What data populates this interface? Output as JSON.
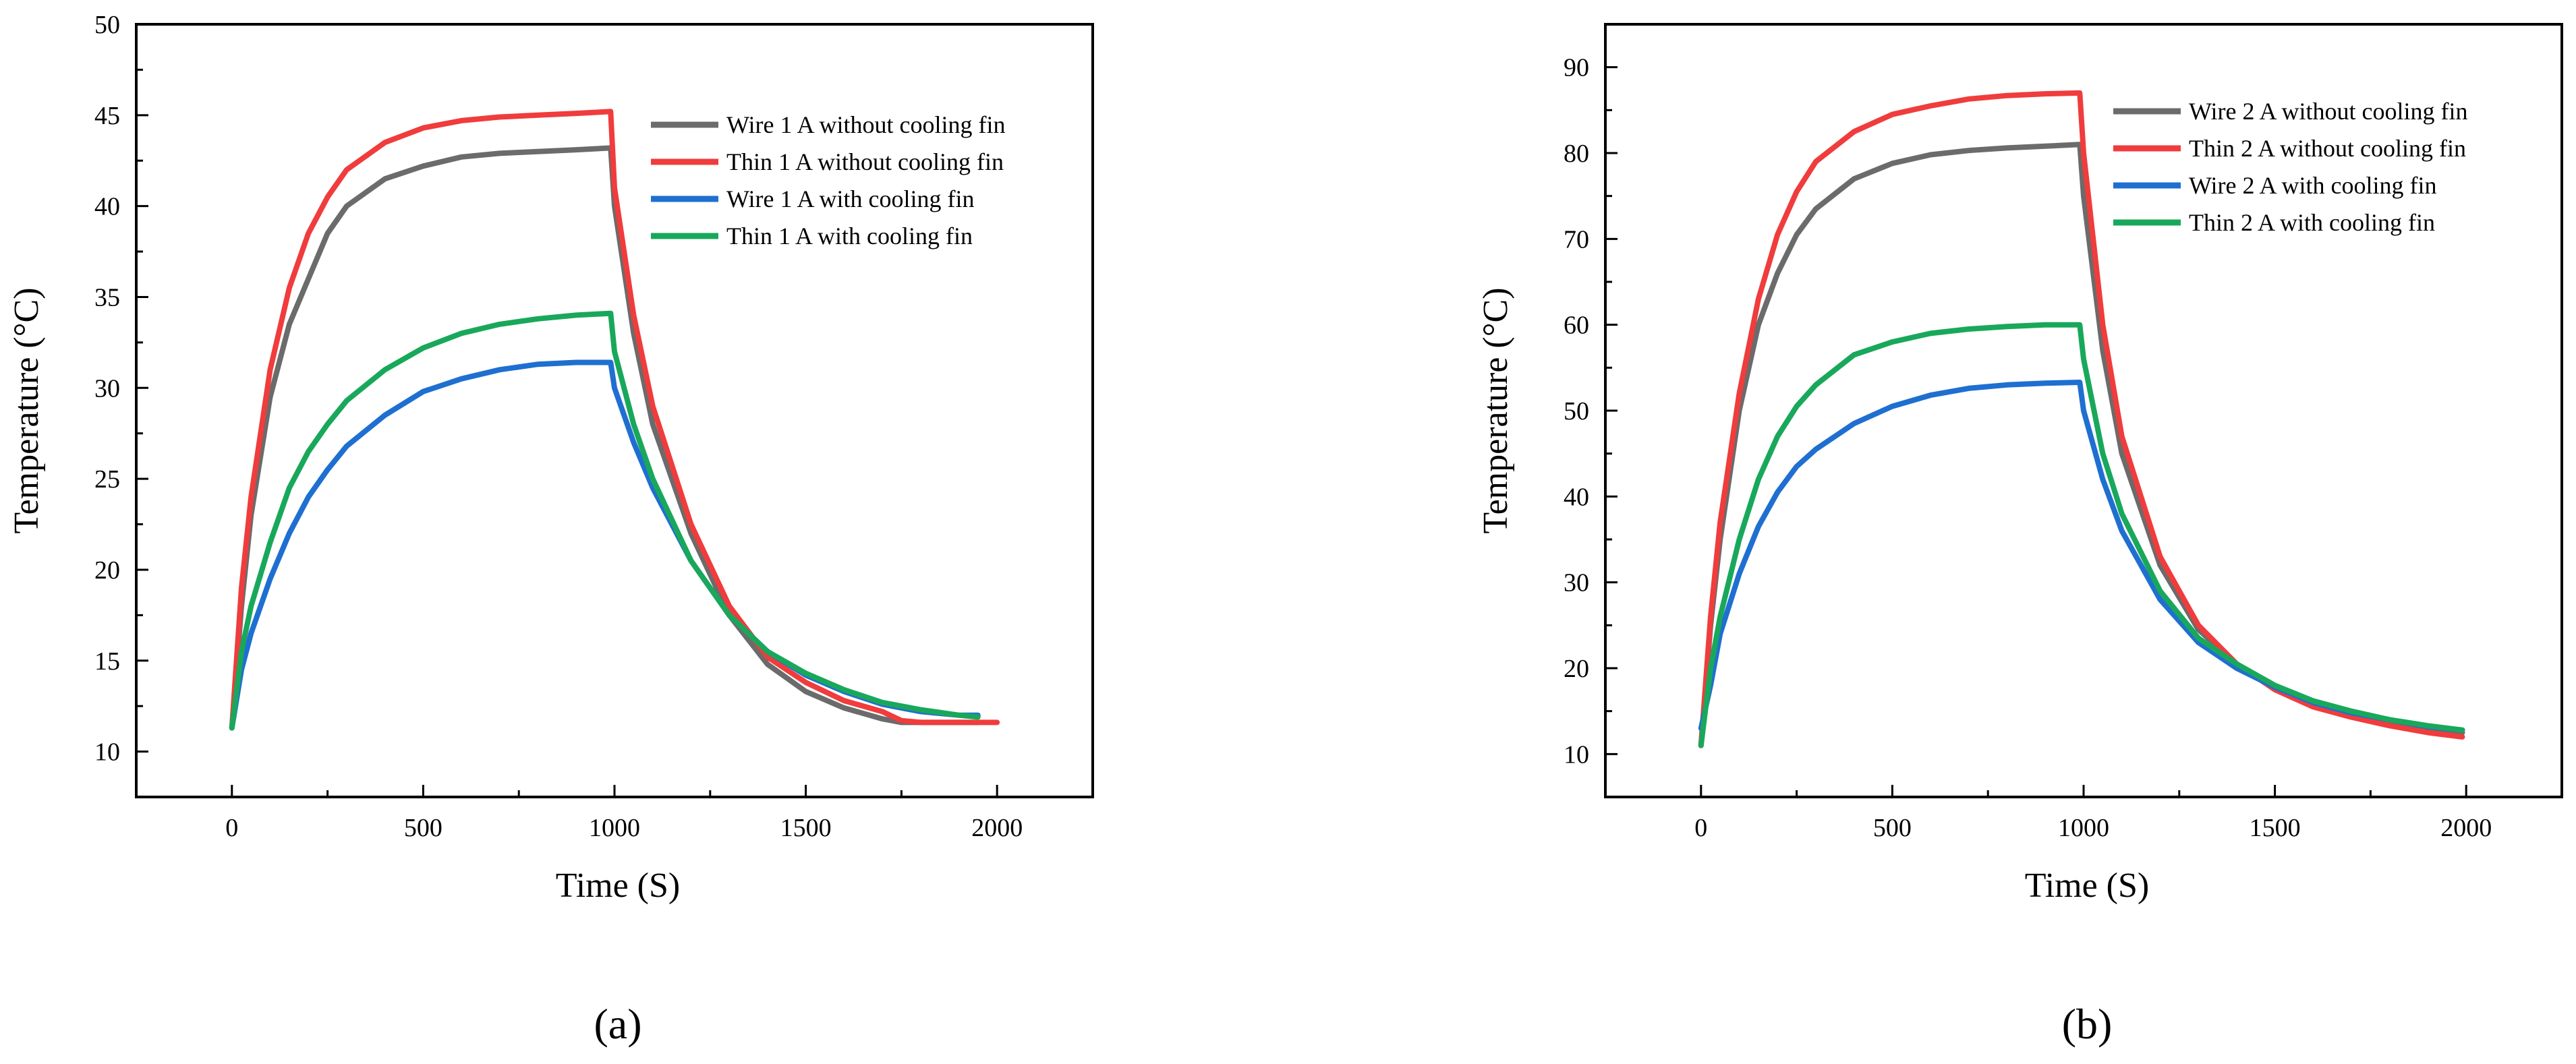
{
  "chart_data": [
    {
      "type": "line",
      "panel": "a",
      "title": "",
      "xlabel": "Time (S)",
      "ylabel": "Temperature (°C)",
      "xlim": [
        -250,
        2250
      ],
      "ylim": [
        7.5,
        50
      ],
      "xticks": [
        0,
        500,
        1000,
        1500,
        2000
      ],
      "yticks": [
        10,
        15,
        20,
        25,
        30,
        35,
        40,
        45,
        50
      ],
      "legend_position": "top-right",
      "series": [
        {
          "name": "Wire 1 A without cooling fin",
          "color": "#6b6b6b",
          "x": [
            0,
            25,
            50,
            100,
            150,
            200,
            250,
            300,
            400,
            500,
            600,
            700,
            800,
            900,
            990,
            1000,
            1050,
            1100,
            1200,
            1300,
            1400,
            1500,
            1600,
            1700,
            1750,
            1800,
            1950
          ],
          "y": [
            11.3,
            18,
            23,
            29.5,
            33.5,
            36,
            38.5,
            40,
            41.5,
            42.2,
            42.7,
            42.9,
            43,
            43.1,
            43.2,
            40,
            33,
            28,
            22,
            17.5,
            14.8,
            13.3,
            12.4,
            11.8,
            11.6,
            11.6,
            11.6
          ]
        },
        {
          "name": "Thin 1 A without cooling fin",
          "color": "#f03c3c",
          "x": [
            0,
            25,
            50,
            100,
            150,
            200,
            250,
            300,
            400,
            500,
            600,
            700,
            800,
            900,
            990,
            1000,
            1050,
            1100,
            1200,
            1300,
            1400,
            1500,
            1600,
            1700,
            1750,
            1800,
            2000
          ],
          "y": [
            11.3,
            19,
            24,
            31,
            35.5,
            38.5,
            40.5,
            42,
            43.5,
            44.3,
            44.7,
            44.9,
            45,
            45.1,
            45.2,
            41,
            34,
            29,
            22.5,
            18,
            15.2,
            13.8,
            12.8,
            12.2,
            11.7,
            11.6,
            11.6
          ]
        },
        {
          "name": "Wire 1 A with cooling fin",
          "color": "#1f6fd1",
          "x": [
            0,
            25,
            50,
            100,
            150,
            200,
            250,
            300,
            400,
            500,
            600,
            700,
            800,
            900,
            990,
            1000,
            1050,
            1100,
            1200,
            1300,
            1400,
            1500,
            1600,
            1700,
            1800,
            1900,
            1950
          ],
          "y": [
            11.3,
            14.5,
            16.5,
            19.5,
            22,
            24,
            25.5,
            26.8,
            28.5,
            29.8,
            30.5,
            31,
            31.3,
            31.4,
            31.4,
            30,
            27,
            24.5,
            20.5,
            17.5,
            15.5,
            14.2,
            13.3,
            12.6,
            12.2,
            12,
            12
          ]
        },
        {
          "name": "Thin 1 A with cooling fin",
          "color": "#19a85b",
          "x": [
            0,
            25,
            50,
            100,
            150,
            200,
            250,
            300,
            400,
            500,
            600,
            700,
            800,
            900,
            990,
            1000,
            1050,
            1100,
            1200,
            1300,
            1400,
            1500,
            1600,
            1700,
            1800,
            1900,
            1950
          ],
          "y": [
            11.3,
            15.5,
            18,
            21.5,
            24.5,
            26.5,
            28,
            29.3,
            31,
            32.2,
            33,
            33.5,
            33.8,
            34,
            34.1,
            32,
            28,
            25,
            20.5,
            17.5,
            15.5,
            14.3,
            13.4,
            12.7,
            12.3,
            12,
            11.9
          ]
        }
      ]
    },
    {
      "type": "line",
      "panel": "b",
      "title": "",
      "xlabel": "Time (S)",
      "ylabel": "Temperature (°C)",
      "xlim": [
        -250,
        2250
      ],
      "ylim": [
        5,
        95
      ],
      "xticks": [
        0,
        500,
        1000,
        1500,
        2000
      ],
      "yticks": [
        10,
        20,
        30,
        40,
        50,
        60,
        70,
        80,
        90
      ],
      "legend_position": "top-right",
      "series": [
        {
          "name": "Wire 2 A without cooling fin",
          "color": "#6b6b6b",
          "x": [
            0,
            25,
            50,
            100,
            150,
            200,
            250,
            300,
            400,
            500,
            600,
            700,
            800,
            900,
            990,
            1000,
            1050,
            1100,
            1200,
            1300,
            1400,
            1500,
            1600,
            1700,
            1800,
            1900,
            1990
          ],
          "y": [
            11,
            25,
            35,
            50,
            60,
            66,
            70.5,
            73.5,
            77,
            78.8,
            79.8,
            80.3,
            80.6,
            80.8,
            81,
            75,
            57,
            45,
            32,
            24.5,
            20.5,
            17.8,
            15.8,
            14.5,
            13.5,
            12.8,
            12.5
          ]
        },
        {
          "name": "Thin 2 A without cooling fin",
          "color": "#f03c3c",
          "x": [
            0,
            25,
            50,
            100,
            150,
            200,
            250,
            300,
            400,
            500,
            600,
            700,
            800,
            900,
            990,
            1000,
            1050,
            1100,
            1200,
            1300,
            1400,
            1500,
            1600,
            1700,
            1800,
            1900,
            1990
          ],
          "y": [
            11,
            26,
            37,
            52,
            63,
            70.5,
            75.5,
            79,
            82.5,
            84.5,
            85.5,
            86.3,
            86.7,
            86.9,
            87,
            80,
            60,
            47,
            33,
            25,
            20.5,
            17.5,
            15.5,
            14.3,
            13.3,
            12.5,
            12
          ]
        },
        {
          "name": "Wire 2 A with cooling fin",
          "color": "#1f6fd1",
          "x": [
            0,
            25,
            50,
            100,
            150,
            200,
            250,
            300,
            400,
            500,
            600,
            700,
            800,
            900,
            990,
            1000,
            1050,
            1100,
            1200,
            1300,
            1400,
            1500,
            1600,
            1700,
            1800,
            1900,
            1990
          ],
          "y": [
            13,
            18,
            24,
            31,
            36.5,
            40.5,
            43.5,
            45.5,
            48.5,
            50.5,
            51.8,
            52.6,
            53,
            53.2,
            53.3,
            50,
            42,
            36,
            28,
            23,
            20,
            17.8,
            16,
            14.8,
            14,
            13.2,
            12.8
          ]
        },
        {
          "name": "Thin 2 A with cooling fin",
          "color": "#19a85b",
          "x": [
            0,
            25,
            50,
            100,
            150,
            200,
            250,
            300,
            400,
            500,
            600,
            700,
            800,
            900,
            990,
            1000,
            1050,
            1100,
            1200,
            1300,
            1400,
            1500,
            1600,
            1700,
            1800,
            1900,
            1990
          ],
          "y": [
            11,
            20,
            26,
            35,
            42,
            47,
            50.5,
            53,
            56.5,
            58,
            59,
            59.5,
            59.8,
            60,
            60,
            56,
            45,
            38,
            29,
            23.5,
            20.5,
            18,
            16.2,
            15,
            14,
            13.3,
            12.8
          ]
        }
      ]
    }
  ],
  "panel_labels": [
    "(a)",
    "(b)"
  ]
}
